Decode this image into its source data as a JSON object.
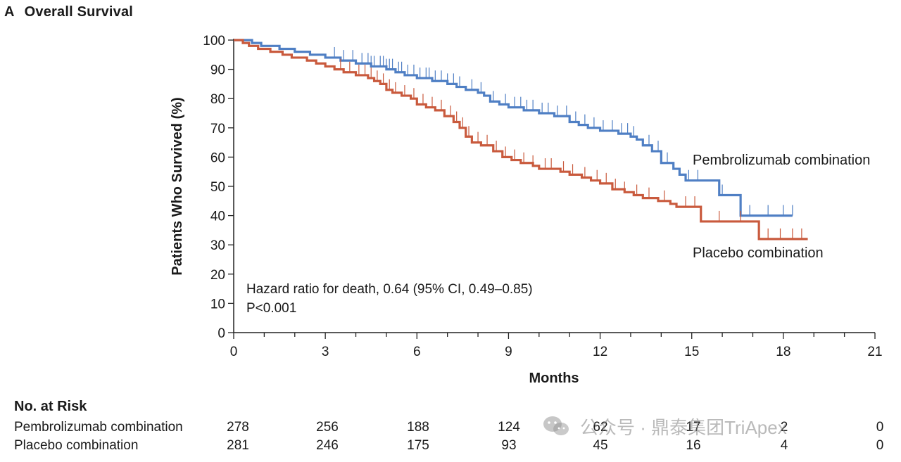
{
  "panel_letter": "A",
  "panel_title": "Overall Survival",
  "chart_data": {
    "type": "line",
    "step": true,
    "title": "Overall Survival",
    "xlabel": "Months",
    "ylabel": "Patients Who Survived (%)",
    "xlim": [
      0,
      21
    ],
    "ylim": [
      0,
      100
    ],
    "xticks": [
      0,
      3,
      6,
      9,
      12,
      15,
      18,
      21
    ],
    "yticks": [
      0,
      10,
      20,
      30,
      40,
      50,
      60,
      70,
      80,
      90,
      100
    ],
    "annotation_lines": [
      "Hazard ratio for death, 0.64 (95% CI, 0.49–0.85)",
      "P<0.001"
    ],
    "series": [
      {
        "name": "Pembrolizumab combination",
        "color": "#4f7fc4",
        "points": [
          [
            0,
            100
          ],
          [
            0.6,
            99
          ],
          [
            0.9,
            98
          ],
          [
            1.5,
            97
          ],
          [
            2,
            96
          ],
          [
            2.5,
            95
          ],
          [
            3,
            94
          ],
          [
            3.5,
            93
          ],
          [
            4,
            92
          ],
          [
            4.5,
            91
          ],
          [
            5,
            90
          ],
          [
            5.3,
            89
          ],
          [
            5.6,
            88
          ],
          [
            6,
            87
          ],
          [
            6.5,
            86
          ],
          [
            7,
            85
          ],
          [
            7.3,
            84
          ],
          [
            7.6,
            83
          ],
          [
            8,
            82
          ],
          [
            8.2,
            81
          ],
          [
            8.4,
            79
          ],
          [
            8.7,
            78
          ],
          [
            9,
            77
          ],
          [
            9.5,
            76
          ],
          [
            10,
            75
          ],
          [
            10.5,
            74
          ],
          [
            11,
            72
          ],
          [
            11.3,
            71
          ],
          [
            11.6,
            70
          ],
          [
            12,
            69
          ],
          [
            12.6,
            68
          ],
          [
            13,
            67
          ],
          [
            13.2,
            66
          ],
          [
            13.4,
            64
          ],
          [
            13.7,
            62
          ],
          [
            14,
            58
          ],
          [
            14.4,
            56
          ],
          [
            14.6,
            54
          ],
          [
            14.8,
            52
          ],
          [
            15.9,
            52
          ],
          [
            15.9,
            47
          ],
          [
            16.6,
            47
          ],
          [
            16.6,
            40
          ],
          [
            18.3,
            40
          ]
        ],
        "censor_x": [
          3.3,
          3.6,
          3.9,
          4.2,
          4.4,
          4.5,
          4.6,
          4.8,
          4.9,
          5.0,
          5.1,
          5.2,
          5.4,
          5.5,
          5.7,
          5.9,
          6.1,
          6.3,
          6.4,
          6.6,
          6.8,
          7.0,
          7.2,
          7.4,
          7.8,
          8.1,
          8.5,
          8.9,
          9.2,
          9.4,
          9.6,
          9.8,
          10.1,
          10.3,
          10.6,
          10.9,
          11.2,
          11.5,
          11.8,
          12.1,
          12.4,
          12.7,
          12.9,
          13.1,
          13.6,
          13.9,
          14.2,
          14.9,
          15.2,
          16.0,
          16.9,
          17.5,
          18.0,
          18.3
        ],
        "at_risk": [
          278,
          256,
          188,
          124,
          62,
          17,
          2,
          0
        ]
      },
      {
        "name": "Placebo combination",
        "color": "#c95a3d",
        "points": [
          [
            0,
            100
          ],
          [
            0.3,
            99
          ],
          [
            0.5,
            98
          ],
          [
            0.8,
            97
          ],
          [
            1.2,
            96
          ],
          [
            1.6,
            95
          ],
          [
            1.9,
            94
          ],
          [
            2.4,
            93
          ],
          [
            2.7,
            92
          ],
          [
            3,
            91
          ],
          [
            3.3,
            90
          ],
          [
            3.6,
            89
          ],
          [
            4,
            88
          ],
          [
            4.4,
            87
          ],
          [
            4.6,
            86
          ],
          [
            4.8,
            85
          ],
          [
            5.0,
            83
          ],
          [
            5.2,
            82
          ],
          [
            5.5,
            81
          ],
          [
            5.8,
            80
          ],
          [
            6,
            78
          ],
          [
            6.3,
            77
          ],
          [
            6.6,
            76
          ],
          [
            6.9,
            74
          ],
          [
            7.2,
            72
          ],
          [
            7.4,
            70
          ],
          [
            7.6,
            67
          ],
          [
            7.8,
            65
          ],
          [
            8.1,
            64
          ],
          [
            8.5,
            62
          ],
          [
            8.8,
            60
          ],
          [
            9.1,
            59
          ],
          [
            9.4,
            58
          ],
          [
            9.8,
            57
          ],
          [
            10,
            56
          ],
          [
            10.5,
            56
          ],
          [
            10.7,
            55
          ],
          [
            11,
            54
          ],
          [
            11.4,
            53
          ],
          [
            11.7,
            52
          ],
          [
            12,
            51
          ],
          [
            12.4,
            49
          ],
          [
            12.8,
            48
          ],
          [
            13.1,
            47
          ],
          [
            13.4,
            46
          ],
          [
            13.9,
            45
          ],
          [
            14.3,
            44
          ],
          [
            14.5,
            43
          ],
          [
            15.3,
            43
          ],
          [
            15.3,
            38
          ],
          [
            17.2,
            38
          ],
          [
            17.2,
            32
          ],
          [
            18.8,
            32
          ]
        ],
        "censor_x": [
          3.5,
          3.8,
          4.1,
          4.3,
          4.5,
          4.7,
          4.9,
          5.1,
          5.3,
          5.6,
          5.9,
          6.2,
          6.5,
          6.8,
          7.1,
          7.3,
          7.5,
          7.7,
          8.0,
          8.3,
          8.6,
          8.9,
          9.2,
          9.5,
          9.8,
          10.2,
          10.4,
          10.8,
          11.1,
          11.5,
          11.9,
          12.2,
          12.5,
          12.8,
          13.2,
          13.6,
          14.1,
          14.8,
          15.1,
          15.9,
          16.6,
          17.5,
          17.9,
          18.3,
          18.6
        ],
        "at_risk": [
          281,
          246,
          175,
          93,
          45,
          16,
          4,
          0
        ]
      }
    ]
  },
  "risk_table": {
    "title": "No. at Risk",
    "rows": [
      {
        "label": "Pembrolizumab combination"
      },
      {
        "label": "Placebo combination"
      }
    ]
  },
  "watermark": {
    "text": "公众号 · 鼎泰集团TriApex",
    "icon": "wechat-icon"
  }
}
